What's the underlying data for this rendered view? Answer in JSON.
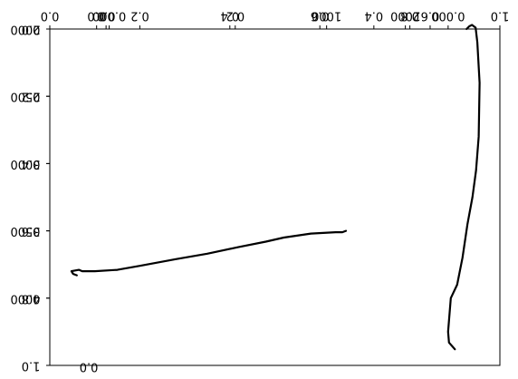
{
  "chart_data": {
    "type": "line",
    "notes": "Mirrored figure with overlapping axes.",
    "axes": {
      "top_primary_labels": [
        "0.0",
        "0.2",
        "0.4",
        "0.6",
        "0.8",
        "1.0"
      ],
      "top_secondary_labels": [
        "0.0",
        "0.2",
        "0.4",
        "0.6",
        "0.8",
        "1.0"
      ],
      "top_extra_labels": [
        "0.0",
        "0.000",
        "1000",
        "2000",
        "0.000"
      ],
      "left_primary_labels": [
        "0.0",
        "0.2",
        "0.4",
        "0.6",
        "0.8",
        "1.0"
      ],
      "left_secondary_labels": [
        "2000",
        "2500",
        "3000",
        "3500",
        "4000"
      ],
      "bottom_label": "0.0"
    },
    "series": [
      {
        "x": [
          0.926,
          0.932,
          0.938,
          0.946,
          0.95,
          0.955,
          0.953,
          0.947,
          0.939,
          0.928,
          0.917,
          0.905,
          0.891,
          0.885,
          0.887,
          0.9
        ],
        "y": [
          2000,
          1980,
          1970,
          1990,
          2100,
          2400,
          2800,
          3050,
          3250,
          3450,
          3700,
          3900,
          4000,
          4250,
          4330,
          4380
        ]
      },
      {
        "x": [
          0.658,
          0.65,
          0.635,
          0.58,
          0.52,
          0.48,
          0.42,
          0.35,
          0.28,
          0.2,
          0.15,
          0.1,
          0.072,
          0.065,
          0.048,
          0.052,
          0.06
        ],
        "y": [
          3500,
          3510,
          3510,
          3520,
          3550,
          3580,
          3620,
          3670,
          3710,
          3760,
          3790,
          3800,
          3800,
          3790,
          3800,
          3820,
          3830
        ]
      }
    ]
  }
}
